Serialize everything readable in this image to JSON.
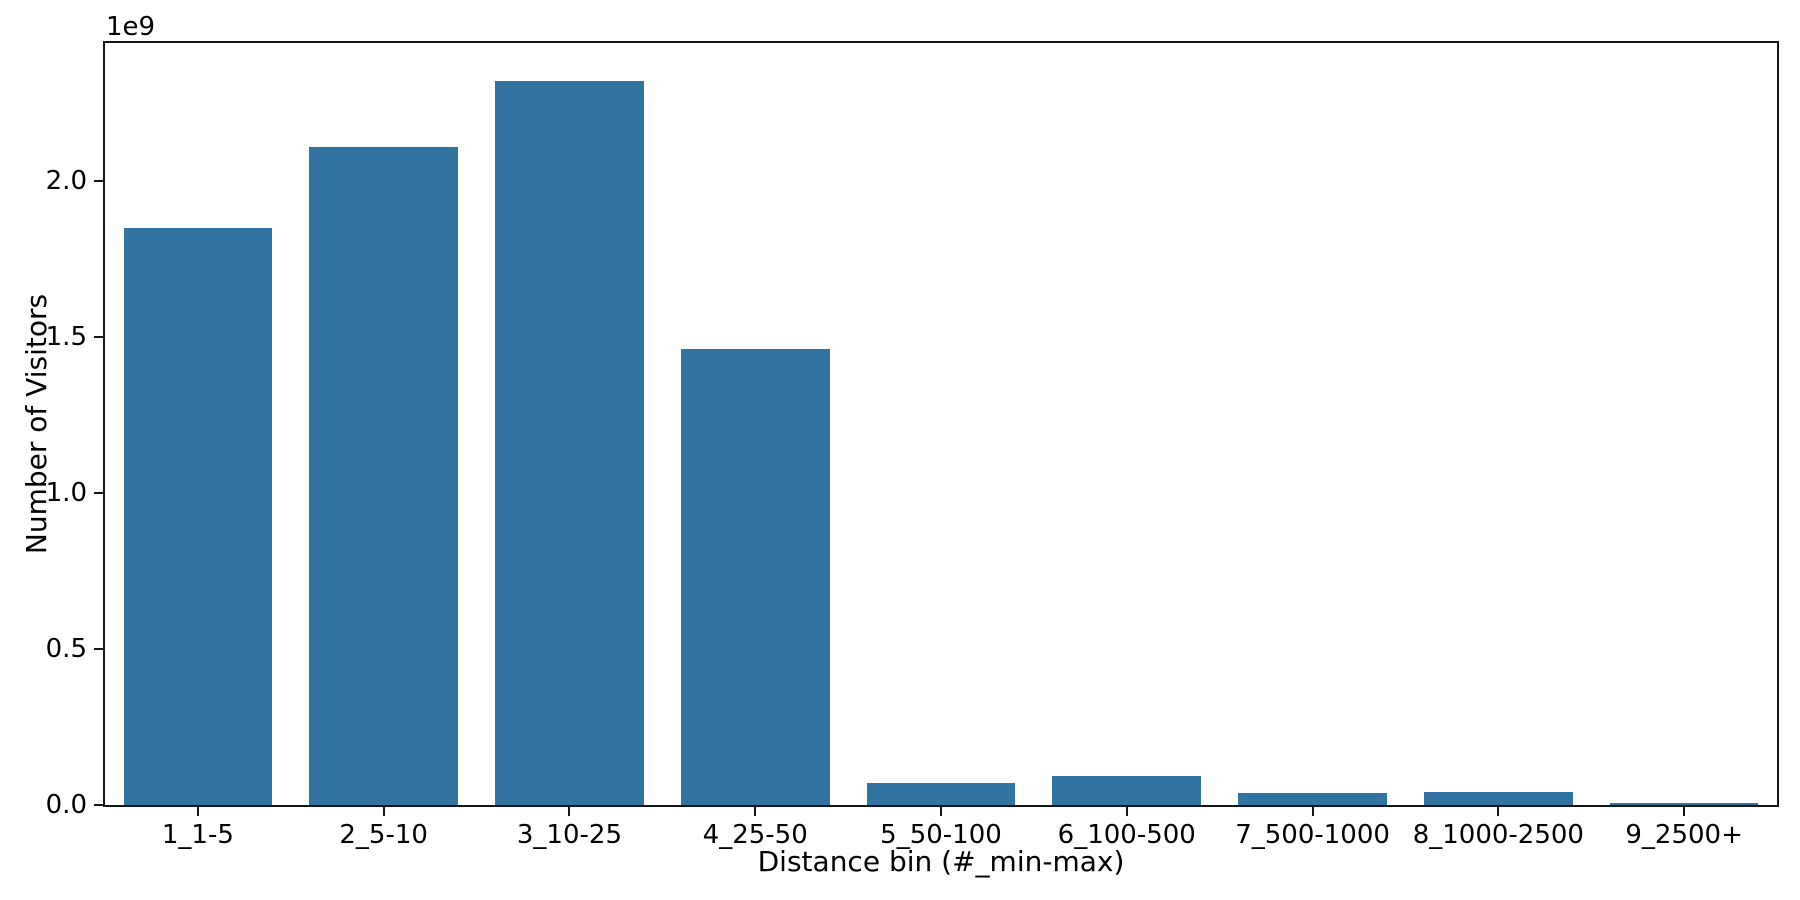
{
  "figure": {
    "background": "#ffffff",
    "bar_color": "#3274a1",
    "axis_color": "#151515",
    "text_color": "#000000"
  },
  "chart_data": {
    "type": "bar",
    "title": "",
    "xlabel": "Distance bin (#_min-max)",
    "ylabel": "Number of Visitors",
    "y_offset_text": "1e9",
    "categories": [
      "1_1-5",
      "2_5-10",
      "3_10-25",
      "4_25-50",
      "5_50-100",
      "6_100-500",
      "7_500-1000",
      "8_1000-2500",
      "9_2500+"
    ],
    "values": [
      1850000000,
      2110000000,
      2320000000,
      1460000000,
      72000000,
      93000000,
      38000000,
      43000000,
      8000000
    ],
    "bar_width_fraction": 0.8,
    "ylim": [
      0,
      2442000000
    ],
    "yticks": [
      {
        "label": "0.0",
        "value": 0
      },
      {
        "label": "0.5",
        "value": 500000000
      },
      {
        "label": "1.0",
        "value": 1000000000
      },
      {
        "label": "1.5",
        "value": 1500000000
      },
      {
        "label": "2.0",
        "value": 2000000000
      }
    ],
    "grid": false,
    "legend": null
  }
}
